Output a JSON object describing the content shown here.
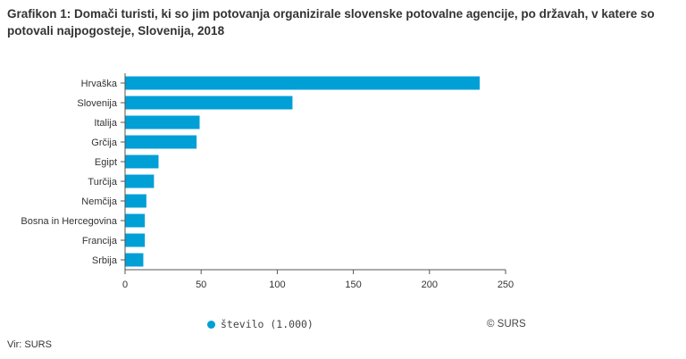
{
  "title": "Grafikon 1: Domači turisti, ki so jim potovanja organizirale slovenske potovalne agencije, po državah, v katere so potovali najpogosteje, Slovenija, 2018",
  "credit": "© SURS",
  "source": "Vir: SURS",
  "colors": {
    "bar": "#009fd6",
    "axis": "#555555",
    "text": "#333333"
  },
  "chart_data": {
    "type": "bar",
    "orientation": "horizontal",
    "categories": [
      "Hrvaška",
      "Slovenija",
      "Italija",
      "Grčija",
      "Egipt",
      "Turčija",
      "Nemčija",
      "Bosna in Hercegovina",
      "Francija",
      "Srbija"
    ],
    "series": [
      {
        "name": "število (1.000)",
        "values": [
          233,
          110,
          49,
          47,
          22,
          19,
          14,
          13,
          13,
          12
        ]
      }
    ],
    "xlim": [
      0,
      250
    ],
    "xticks": [
      0,
      50,
      100,
      150,
      200,
      250
    ],
    "grid": false,
    "legend_position": "bottom"
  }
}
